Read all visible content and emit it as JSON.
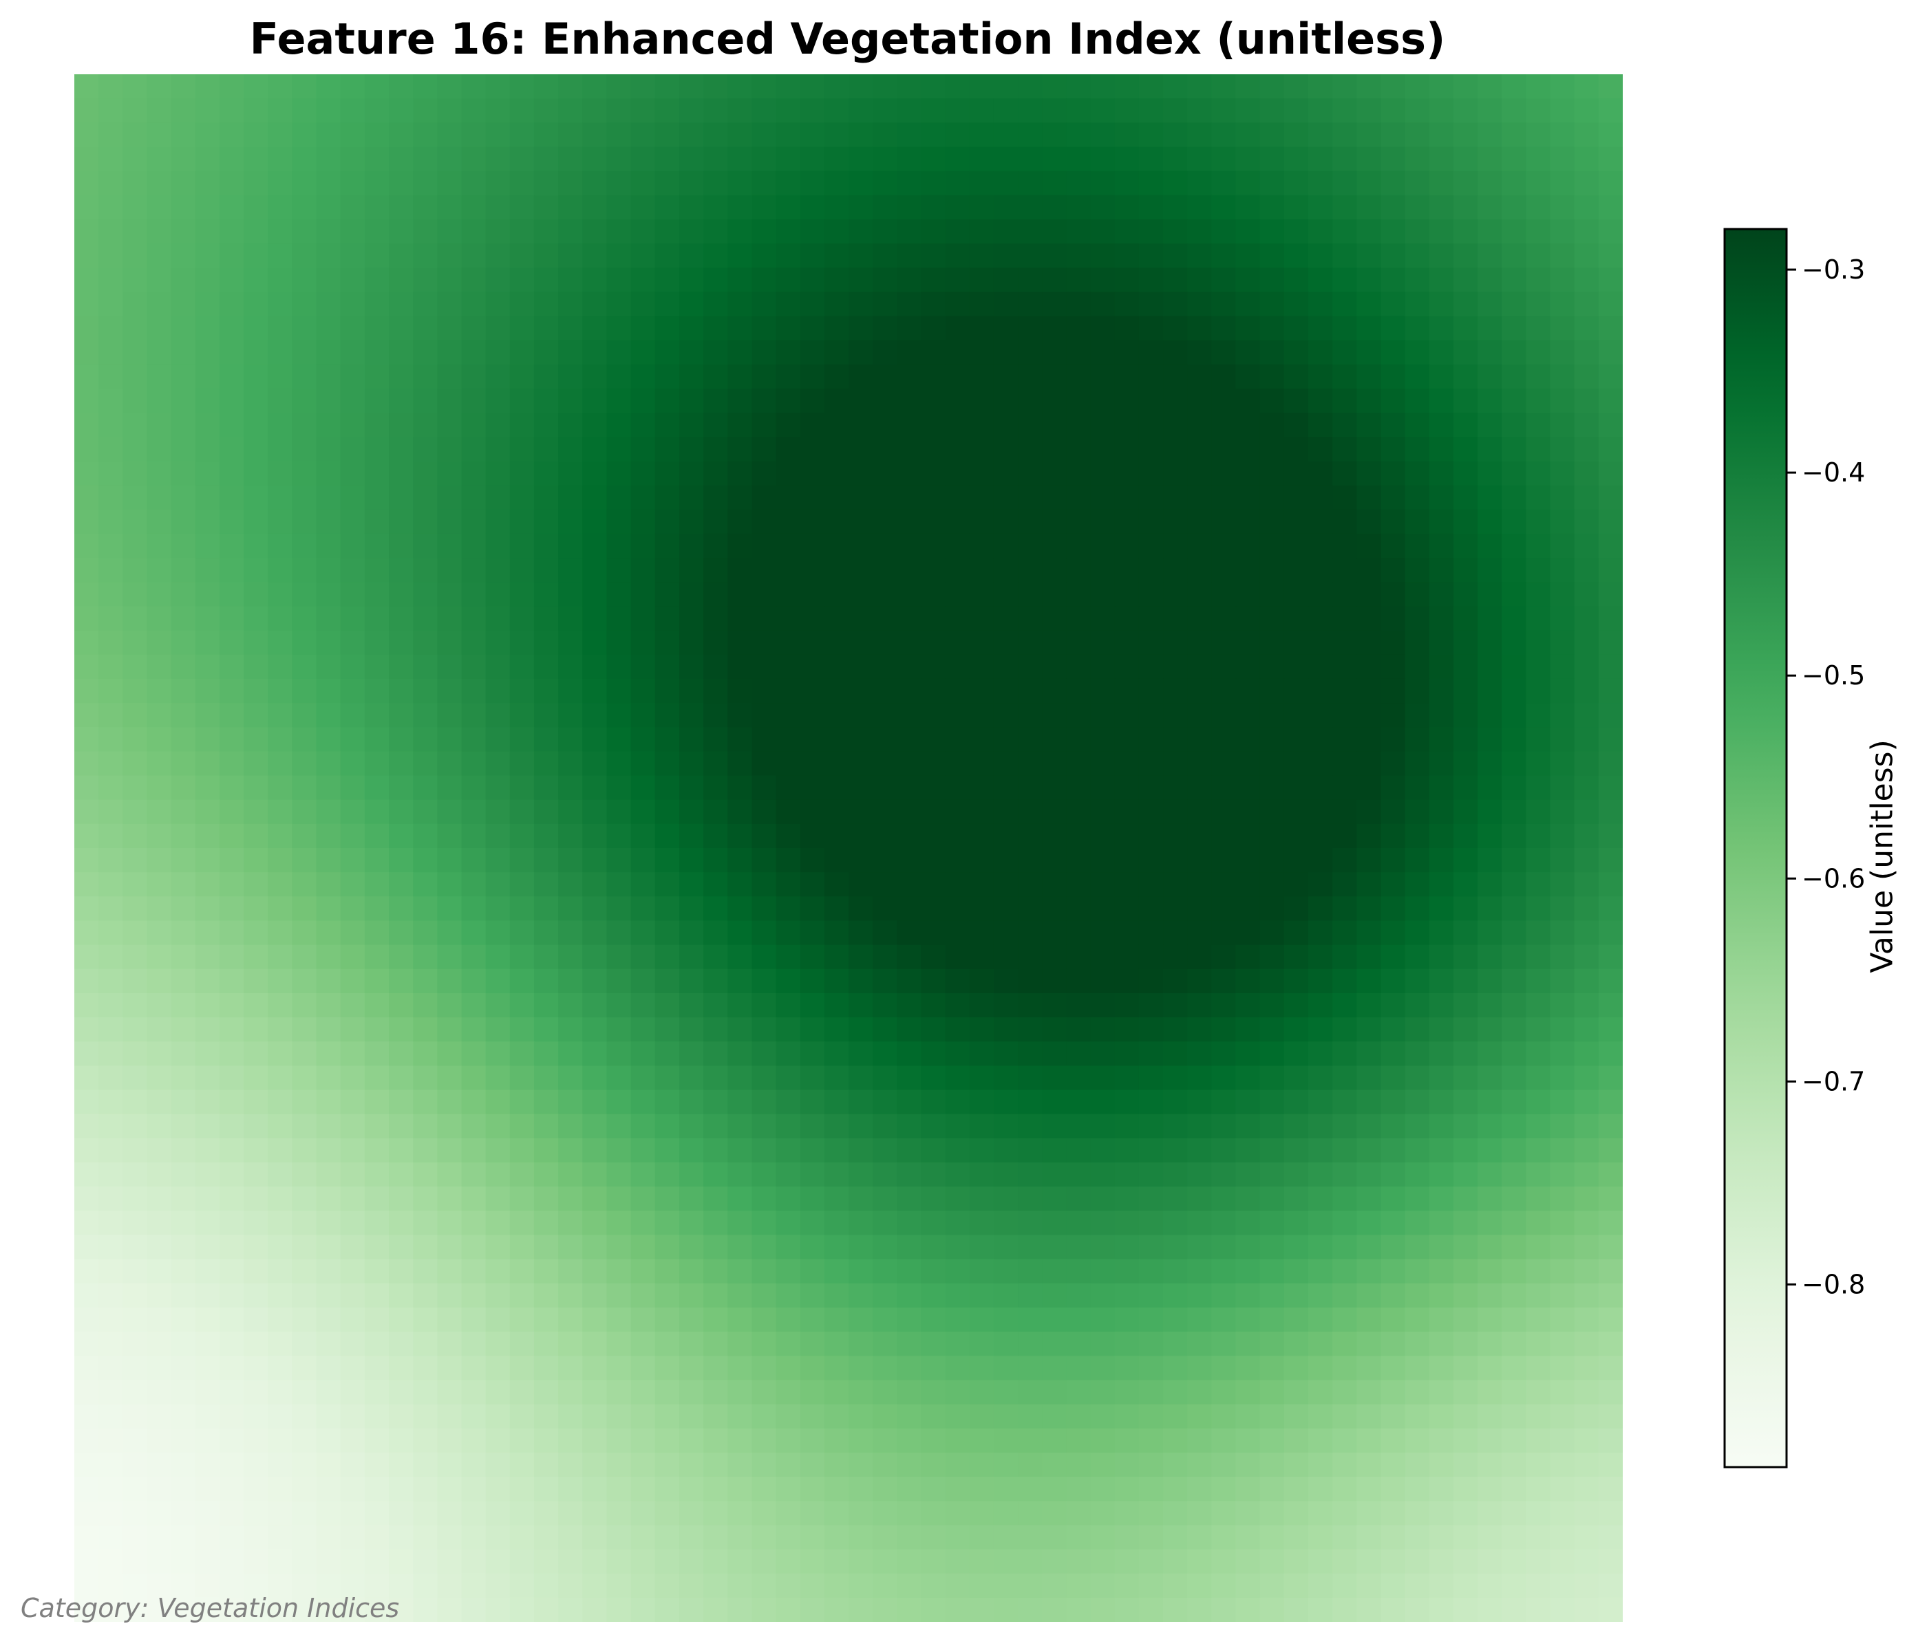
{
  "chart_data": {
    "type": "heatmap",
    "title": "Feature 16: Enhanced Vegetation Index (unitless)",
    "colormap": "Greens",
    "grid_rows": 64,
    "grid_cols": 64,
    "value_range": [
      -0.89,
      -0.28
    ],
    "colorbar": {
      "label": "Value (unitless)",
      "ticks": [
        -0.3,
        -0.4,
        -0.5,
        -0.6,
        -0.7,
        -0.8
      ],
      "tick_labels": [
        "−0.3",
        "−0.4",
        "−0.5",
        "−0.6",
        "−0.7",
        "−0.8"
      ]
    },
    "value_field": {
      "base": -0.66,
      "components": [
        {
          "center": [
            0.68,
            0.44
          ],
          "sigma": 0.28,
          "amplitude": 0.36
        },
        {
          "center": [
            0.0,
            0.95
          ],
          "sigma": 0.3,
          "amplitude": -0.24
        },
        {
          "center": [
            1.0,
            1.0
          ],
          "sigma": 0.22,
          "amplitude": -0.14
        },
        {
          "center": [
            0.55,
            0.0
          ],
          "sigma": 0.4,
          "amplitude": 0.14
        },
        {
          "center": [
            0.3,
            0.4
          ],
          "sigma": 0.35,
          "amplitude": 0.08
        }
      ]
    }
  },
  "caption": "Category: Vegetation Indices"
}
